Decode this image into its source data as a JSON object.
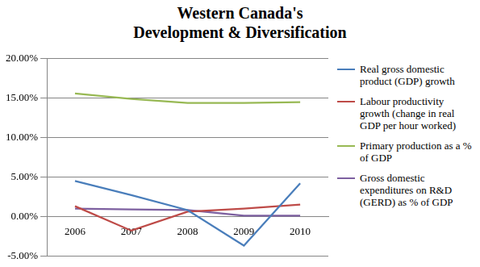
{
  "chart_data": {
    "type": "line",
    "title": [
      "Western Canada's",
      "Development & Diversification"
    ],
    "categories": [
      "2006",
      "2007",
      "2008",
      "2009",
      "2010"
    ],
    "series": [
      {
        "name": "Real gross domestic product (GDP) growth",
        "color": "#4a7ebb",
        "values": [
          4.5,
          2.7,
          0.8,
          -3.7,
          4.2
        ]
      },
      {
        "name": "Labour productivity growth (change in real GDP per hour worked)",
        "color": "#be4b48",
        "values": [
          1.3,
          -1.8,
          0.6,
          1.0,
          1.5
        ]
      },
      {
        "name": "Primary production as a % of GDP",
        "color": "#98b954",
        "values": [
          15.6,
          14.9,
          14.4,
          14.4,
          14.5
        ]
      },
      {
        "name": "Gross domestic expenditures on R&D (GERD) as % of GDP",
        "color": "#7d60a0",
        "values": [
          1.0,
          0.9,
          0.8,
          0.1,
          0.1
        ]
      }
    ],
    "ylim": [
      -5,
      20
    ],
    "yticks": [
      {
        "value": -5,
        "label": "-5.00%"
      },
      {
        "value": 0,
        "label": "0.00%"
      },
      {
        "value": 5,
        "label": "5.00%"
      },
      {
        "value": 10,
        "label": "10.00%"
      },
      {
        "value": 15,
        "label": "15.00%"
      },
      {
        "value": 20,
        "label": "20.00%"
      }
    ],
    "grid": true,
    "legend": "right",
    "marker": "none"
  }
}
